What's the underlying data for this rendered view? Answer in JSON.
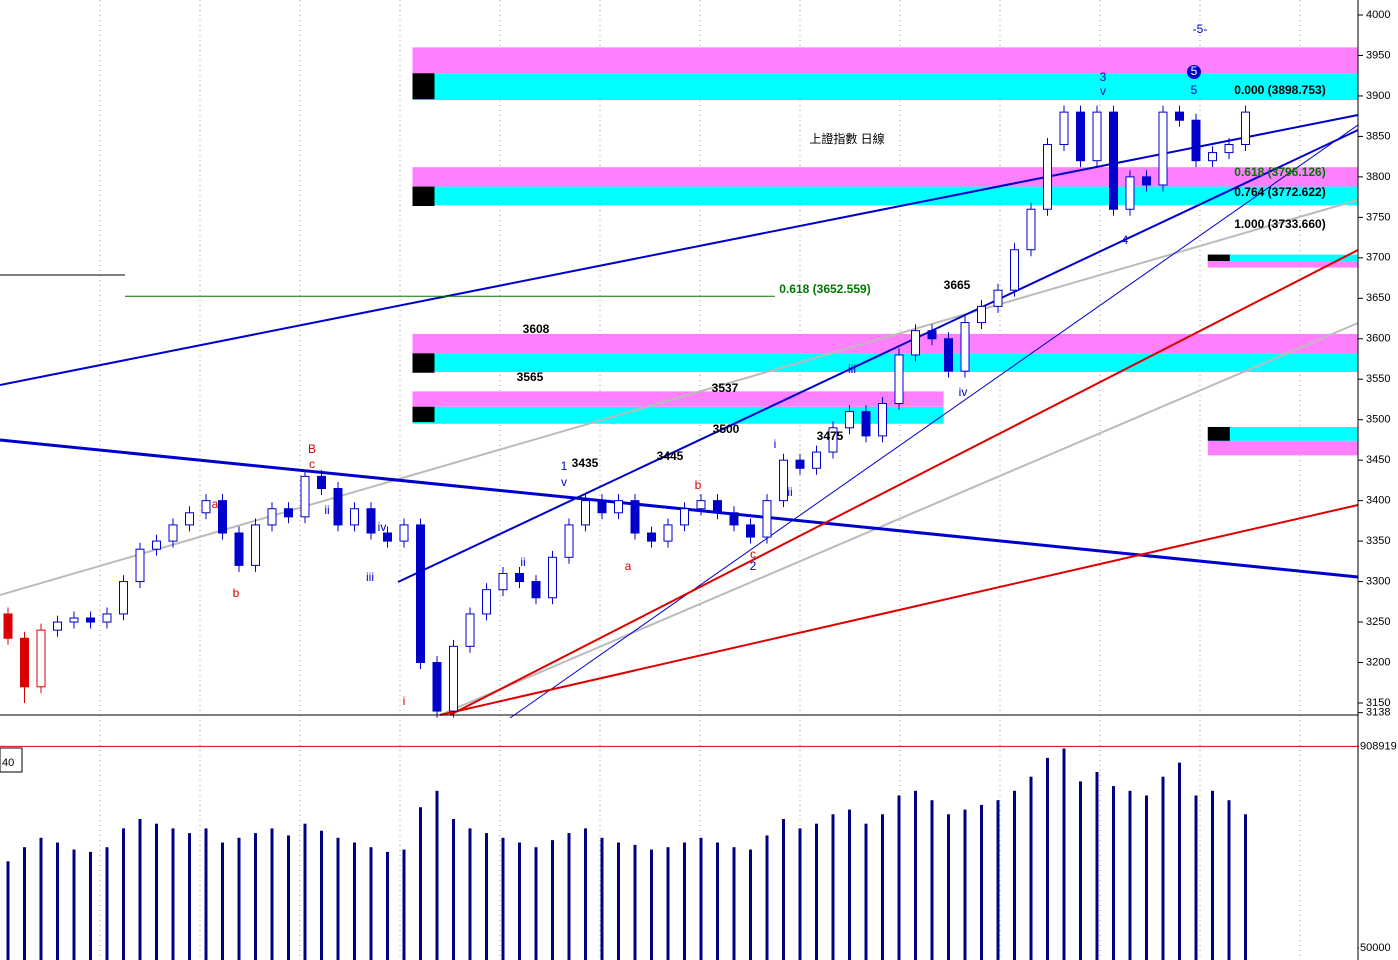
{
  "chart_data": {
    "type": "candlestick",
    "candles": [
      [
        3260,
        3268,
        3222,
        3230
      ],
      [
        3230,
        3238,
        3150,
        3170
      ],
      [
        3170,
        3248,
        3162,
        3240
      ],
      [
        3240,
        3258,
        3232,
        3250
      ],
      [
        3250,
        3263,
        3242,
        3255
      ],
      [
        3255,
        3263,
        3242,
        3250
      ],
      [
        3250,
        3268,
        3242,
        3260
      ],
      [
        3260,
        3308,
        3252,
        3300
      ],
      [
        3300,
        3348,
        3292,
        3340
      ],
      [
        3340,
        3358,
        3332,
        3350
      ],
      [
        3350,
        3378,
        3342,
        3370
      ],
      [
        3370,
        3393,
        3362,
        3385
      ],
      [
        3385,
        3408,
        3377,
        3400
      ],
      [
        3400,
        3408,
        3352,
        3360
      ],
      [
        3360,
        3368,
        3312,
        3320
      ],
      [
        3320,
        3378,
        3312,
        3370
      ],
      [
        3370,
        3398,
        3362,
        3390
      ],
      [
        3390,
        3398,
        3372,
        3380
      ],
      [
        3380,
        3438,
        3372,
        3430
      ],
      [
        3430,
        3438,
        3407,
        3415
      ],
      [
        3415,
        3423,
        3362,
        3370
      ],
      [
        3370,
        3398,
        3362,
        3390
      ],
      [
        3390,
        3398,
        3352,
        3360
      ],
      [
        3360,
        3368,
        3342,
        3350
      ],
      [
        3350,
        3378,
        3342,
        3370
      ],
      [
        3370,
        3378,
        3192,
        3200
      ],
      [
        3200,
        3208,
        3132,
        3140
      ],
      [
        3140,
        3228,
        3132,
        3220
      ],
      [
        3220,
        3268,
        3212,
        3260
      ],
      [
        3260,
        3298,
        3252,
        3290
      ],
      [
        3290,
        3318,
        3282,
        3310
      ],
      [
        3310,
        3318,
        3292,
        3300
      ],
      [
        3300,
        3308,
        3272,
        3280
      ],
      [
        3280,
        3338,
        3272,
        3330
      ],
      [
        3330,
        3378,
        3322,
        3370
      ],
      [
        3370,
        3408,
        3362,
        3400
      ],
      [
        3400,
        3408,
        3377,
        3385
      ],
      [
        3385,
        3408,
        3377,
        3400
      ],
      [
        3400,
        3408,
        3352,
        3360
      ],
      [
        3360,
        3368,
        3342,
        3350
      ],
      [
        3350,
        3378,
        3342,
        3370
      ],
      [
        3370,
        3398,
        3362,
        3390
      ],
      [
        3390,
        3408,
        3382,
        3400
      ],
      [
        3400,
        3408,
        3377,
        3385
      ],
      [
        3385,
        3393,
        3362,
        3370
      ],
      [
        3370,
        3378,
        3347,
        3355
      ],
      [
        3355,
        3408,
        3347,
        3400
      ],
      [
        3400,
        3458,
        3392,
        3450
      ],
      [
        3450,
        3458,
        3432,
        3440
      ],
      [
        3440,
        3468,
        3432,
        3460
      ],
      [
        3460,
        3498,
        3452,
        3490
      ],
      [
        3490,
        3518,
        3482,
        3510
      ],
      [
        3510,
        3518,
        3472,
        3480
      ],
      [
        3480,
        3528,
        3472,
        3520
      ],
      [
        3520,
        3588,
        3512,
        3580
      ],
      [
        3580,
        3618,
        3572,
        3610
      ],
      [
        3610,
        3618,
        3592,
        3600
      ],
      [
        3600,
        3608,
        3552,
        3560
      ],
      [
        3560,
        3628,
        3552,
        3620
      ],
      [
        3620,
        3648,
        3612,
        3640
      ],
      [
        3640,
        3668,
        3632,
        3660
      ],
      [
        3660,
        3718,
        3652,
        3710
      ],
      [
        3710,
        3768,
        3702,
        3760
      ],
      [
        3760,
        3848,
        3752,
        3840
      ],
      [
        3840,
        3888,
        3832,
        3880
      ],
      [
        3880,
        3888,
        3812,
        3820
      ],
      [
        3820,
        3888,
        3812,
        3880
      ],
      [
        3880,
        3888,
        3752,
        3760
      ],
      [
        3760,
        3808,
        3752,
        3800
      ],
      [
        3800,
        3808,
        3782,
        3790
      ],
      [
        3790,
        3888,
        3782,
        3880
      ],
      [
        3880,
        3888,
        3862,
        3870
      ],
      [
        3870,
        3878,
        3812,
        3820
      ],
      [
        3820,
        3838,
        3812,
        3830
      ],
      [
        3830,
        3848,
        3822,
        3840
      ],
      [
        3840,
        3888,
        3832,
        3880
      ]
    ],
    "up_color": "#ffffff",
    "down_color": "#0000cc",
    "ylim": [
      3138,
      4000
    ],
    "yticks": [
      3150,
      3200,
      3250,
      3300,
      3350,
      3400,
      3450,
      3500,
      3550,
      3600,
      3650,
      3700,
      3750,
      3800,
      3850,
      3900,
      3950,
      4000,
      3138
    ],
    "fib_line": 3652.559,
    "zones": [
      {
        "start": 25,
        "end": 82,
        "levels": [
          3895,
          3928,
          3960
        ],
        "colors": [
          "#00ffff",
          "#ff80ff"
        ]
      },
      {
        "start": 25,
        "end": 82,
        "levels": [
          3765,
          3788,
          3812
        ],
        "colors": [
          "#00ffff",
          "#ff80ff"
        ]
      },
      {
        "start": 25,
        "end": 82,
        "levels": [
          3559,
          3582,
          3606
        ],
        "colors": [
          "#00ffff",
          "#ff80ff"
        ]
      },
      {
        "start": 25,
        "end": 56.7,
        "levels": [
          3495,
          3516,
          3535
        ],
        "colors": [
          "#00ffff",
          "#ff80ff"
        ]
      },
      {
        "start": 73.2,
        "end": 82,
        "levels": [
          3688,
          3696,
          3704
        ],
        "colors": [
          "#ff80ff",
          "#00ffff"
        ]
      },
      {
        "start": 73.2,
        "end": 82,
        "levels": [
          3456,
          3474,
          3491
        ],
        "colors": [
          "#ff80ff",
          "#00ffff"
        ]
      }
    ],
    "annotations": [
      {
        "text": "上證指數 日線",
        "color": "#000000"
      },
      {
        "text": "0.618 (3652.559)",
        "color": "#007700"
      },
      {
        "text": "0.000 (3898.753)",
        "color": "#000000"
      },
      {
        "text": "0.618 (3796.126)",
        "color": "#007700"
      },
      {
        "text": "0.764 (3772.622)",
        "color": "#000000"
      },
      {
        "text": "1.000 (3733.660)",
        "color": "#000000"
      },
      {
        "text": "3665",
        "color": "#000000"
      },
      {
        "text": "3608",
        "color": "#000000"
      },
      {
        "text": "3565",
        "color": "#000000"
      },
      {
        "text": "3537",
        "color": "#000000"
      },
      {
        "text": "3500",
        "color": "#000000"
      },
      {
        "text": "3475",
        "color": "#000000"
      },
      {
        "text": "3445",
        "color": "#000000"
      },
      {
        "text": "3435",
        "color": "#000000"
      },
      {
        "text": "B",
        "color": "#dd0000"
      },
      {
        "text": "c",
        "color": "#dd0000"
      },
      {
        "text": "a",
        "color": "#dd0000"
      },
      {
        "text": "b",
        "color": "#dd0000"
      },
      {
        "text": "ii",
        "color": "#0000cc"
      },
      {
        "text": "iii",
        "color": "#0000cc"
      },
      {
        "text": "iv",
        "color": "#0000cc"
      },
      {
        "text": "i",
        "color": "#dd0000"
      },
      {
        "text": "1",
        "color": "#0000cc"
      },
      {
        "text": "v",
        "color": "#0000cc"
      },
      {
        "text": "ii",
        "color": "#0000cc"
      },
      {
        "text": "a",
        "color": "#dd0000"
      },
      {
        "text": "b",
        "color": "#dd0000"
      },
      {
        "text": "c",
        "color": "#dd0000"
      },
      {
        "text": "2",
        "color": "#0000cc"
      },
      {
        "text": "i",
        "color": "#0000cc"
      },
      {
        "text": "ii",
        "color": "#0000cc"
      },
      {
        "text": "iii",
        "color": "#0000cc"
      },
      {
        "text": "iv",
        "color": "#0000cc"
      },
      {
        "text": "3",
        "color": "#0000cc"
      },
      {
        "text": "v",
        "color": "#0000cc"
      },
      {
        "text": "4",
        "color": "#0000cc"
      },
      {
        "text": "5",
        "color": "#0000cc"
      },
      {
        "text": "-5-",
        "color": "#0000cc"
      },
      {
        "text": "5",
        "color": "#ffffff"
      }
    ],
    "volume": {
      "values": [
        420000,
        480000,
        520000,
        500000,
        470000,
        460000,
        480000,
        560000,
        600000,
        580000,
        560000,
        540000,
        560000,
        500000,
        520000,
        540000,
        560000,
        530000,
        580000,
        550000,
        520000,
        500000,
        480000,
        460000,
        470000,
        650000,
        720000,
        600000,
        560000,
        540000,
        520000,
        500000,
        480000,
        510000,
        540000,
        560000,
        520000,
        500000,
        490000,
        470000,
        480000,
        500000,
        520000,
        500000,
        480000,
        470000,
        530000,
        600000,
        560000,
        580000,
        620000,
        640000,
        580000,
        620000,
        700000,
        720000,
        680000,
        620000,
        640000,
        660000,
        680000,
        720000,
        780000,
        860000,
        900000,
        760000,
        800000,
        740000,
        720000,
        700000,
        780000,
        840000,
        700000,
        720000,
        680000,
        620000
      ],
      "color": "#000080",
      "ylim": [
        0,
        1000000
      ],
      "yticks": [
        50000,
        908919
      ],
      "indicator": "40"
    }
  }
}
